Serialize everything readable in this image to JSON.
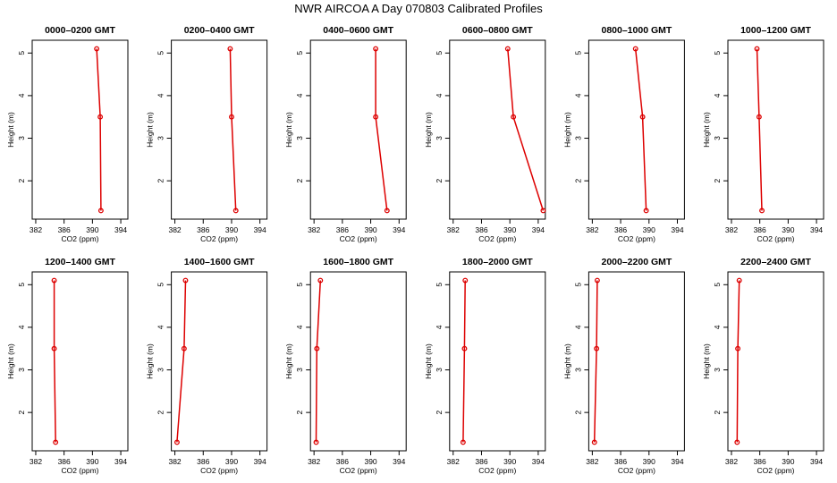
{
  "figure_title": "NWR AIRCOA A  Day 070803  Calibrated Profiles",
  "chart_data": [
    {
      "type": "line",
      "title": "0000–0200 GMT",
      "xlabel": "CO2 (ppm)",
      "ylabel": "Height (m)",
      "xlim": [
        381.5,
        395
      ],
      "ylim": [
        1.1,
        5.3
      ],
      "xticks": [
        382,
        386,
        390,
        394
      ],
      "yticks": [
        2,
        3,
        4,
        5
      ],
      "grid": false,
      "color": "#dd0000",
      "series": [
        {
          "x": [
            390.6,
            391.1,
            391.2
          ],
          "y": [
            5.1,
            3.5,
            1.3
          ]
        }
      ]
    },
    {
      "type": "line",
      "title": "0200–0400 GMT",
      "xlabel": "CO2 (ppm)",
      "ylabel": "Height (m)",
      "xlim": [
        381.5,
        395
      ],
      "ylim": [
        1.1,
        5.3
      ],
      "xticks": [
        382,
        386,
        390,
        394
      ],
      "yticks": [
        2,
        3,
        4,
        5
      ],
      "grid": false,
      "color": "#dd0000",
      "series": [
        {
          "x": [
            389.8,
            390.0,
            390.6
          ],
          "y": [
            5.1,
            3.5,
            1.3
          ]
        }
      ]
    },
    {
      "type": "line",
      "title": "0400–0600 GMT",
      "xlabel": "CO2 (ppm)",
      "ylabel": "Height (m)",
      "xlim": [
        381.5,
        395
      ],
      "ylim": [
        1.1,
        5.3
      ],
      "xticks": [
        382,
        386,
        390,
        394
      ],
      "yticks": [
        2,
        3,
        4,
        5
      ],
      "grid": false,
      "color": "#dd0000",
      "series": [
        {
          "x": [
            390.7,
            390.7,
            392.3
          ],
          "y": [
            5.1,
            3.5,
            1.3
          ]
        }
      ]
    },
    {
      "type": "line",
      "title": "0600–0800 GMT",
      "xlabel": "CO2 (ppm)",
      "ylabel": "Height (m)",
      "xlim": [
        381.5,
        395
      ],
      "ylim": [
        1.1,
        5.3
      ],
      "xticks": [
        382,
        386,
        390,
        394
      ],
      "yticks": [
        2,
        3,
        4,
        5
      ],
      "grid": false,
      "color": "#dd0000",
      "series": [
        {
          "x": [
            389.7,
            390.5,
            394.7
          ],
          "y": [
            5.1,
            3.5,
            1.3
          ]
        }
      ]
    },
    {
      "type": "line",
      "title": "0800–1000 GMT",
      "xlabel": "CO2 (ppm)",
      "ylabel": "Height (m)",
      "xlim": [
        381.5,
        395
      ],
      "ylim": [
        1.1,
        5.3
      ],
      "xticks": [
        382,
        386,
        390,
        394
      ],
      "yticks": [
        2,
        3,
        4,
        5
      ],
      "grid": false,
      "color": "#dd0000",
      "series": [
        {
          "x": [
            388.1,
            389.1,
            389.6
          ],
          "y": [
            5.1,
            3.5,
            1.3
          ]
        }
      ]
    },
    {
      "type": "line",
      "title": "1000–1200 GMT",
      "xlabel": "CO2 (ppm)",
      "ylabel": "Height (m)",
      "xlim": [
        381.5,
        395
      ],
      "ylim": [
        1.1,
        5.3
      ],
      "xticks": [
        382,
        386,
        390,
        394
      ],
      "yticks": [
        2,
        3,
        4,
        5
      ],
      "grid": false,
      "color": "#dd0000",
      "series": [
        {
          "x": [
            385.6,
            385.9,
            386.3
          ],
          "y": [
            5.1,
            3.5,
            1.3
          ]
        }
      ]
    },
    {
      "type": "line",
      "title": "1200–1400 GMT",
      "xlabel": "CO2 (ppm)",
      "ylabel": "Height (m)",
      "xlim": [
        381.5,
        395
      ],
      "ylim": [
        1.1,
        5.3
      ],
      "xticks": [
        382,
        386,
        390,
        394
      ],
      "yticks": [
        2,
        3,
        4,
        5
      ],
      "grid": false,
      "color": "#dd0000",
      "series": [
        {
          "x": [
            384.6,
            384.6,
            384.8
          ],
          "y": [
            5.1,
            3.5,
            1.3
          ]
        }
      ]
    },
    {
      "type": "line",
      "title": "1400–1600 GMT",
      "xlabel": "CO2 (ppm)",
      "ylabel": "Height (m)",
      "xlim": [
        381.5,
        395
      ],
      "ylim": [
        1.1,
        5.3
      ],
      "xticks": [
        382,
        386,
        390,
        394
      ],
      "yticks": [
        2,
        3,
        4,
        5
      ],
      "grid": false,
      "color": "#dd0000",
      "series": [
        {
          "x": [
            383.5,
            383.3,
            382.3
          ],
          "y": [
            5.1,
            3.5,
            1.3
          ]
        }
      ]
    },
    {
      "type": "line",
      "title": "1600–1800 GMT",
      "xlabel": "CO2 (ppm)",
      "ylabel": "Height (m)",
      "xlim": [
        381.5,
        395
      ],
      "ylim": [
        1.1,
        5.3
      ],
      "xticks": [
        382,
        386,
        390,
        394
      ],
      "yticks": [
        2,
        3,
        4,
        5
      ],
      "grid": false,
      "color": "#dd0000",
      "series": [
        {
          "x": [
            382.9,
            382.4,
            382.3
          ],
          "y": [
            5.1,
            3.5,
            1.3
          ]
        }
      ]
    },
    {
      "type": "line",
      "title": "1800–2000 GMT",
      "xlabel": "CO2 (ppm)",
      "ylabel": "Height (m)",
      "xlim": [
        381.5,
        395
      ],
      "ylim": [
        1.1,
        5.3
      ],
      "xticks": [
        382,
        386,
        390,
        394
      ],
      "yticks": [
        2,
        3,
        4,
        5
      ],
      "grid": false,
      "color": "#dd0000",
      "series": [
        {
          "x": [
            383.7,
            383.6,
            383.4
          ],
          "y": [
            5.1,
            3.5,
            1.3
          ]
        }
      ]
    },
    {
      "type": "line",
      "title": "2000–2200 GMT",
      "xlabel": "CO2 (ppm)",
      "ylabel": "Height (m)",
      "xlim": [
        381.5,
        395
      ],
      "ylim": [
        1.1,
        5.3
      ],
      "xticks": [
        382,
        386,
        390,
        394
      ],
      "yticks": [
        2,
        3,
        4,
        5
      ],
      "grid": false,
      "color": "#dd0000",
      "series": [
        {
          "x": [
            382.7,
            382.6,
            382.3
          ],
          "y": [
            5.1,
            3.5,
            1.3
          ]
        }
      ]
    },
    {
      "type": "line",
      "title": "2200–2400 GMT",
      "xlabel": "CO2 (ppm)",
      "ylabel": "Height (m)",
      "xlim": [
        381.5,
        395
      ],
      "ylim": [
        1.1,
        5.3
      ],
      "xticks": [
        382,
        386,
        390,
        394
      ],
      "yticks": [
        2,
        3,
        4,
        5
      ],
      "grid": false,
      "color": "#dd0000",
      "series": [
        {
          "x": [
            383.1,
            382.9,
            382.8
          ],
          "y": [
            5.1,
            3.5,
            1.3
          ]
        }
      ]
    }
  ]
}
